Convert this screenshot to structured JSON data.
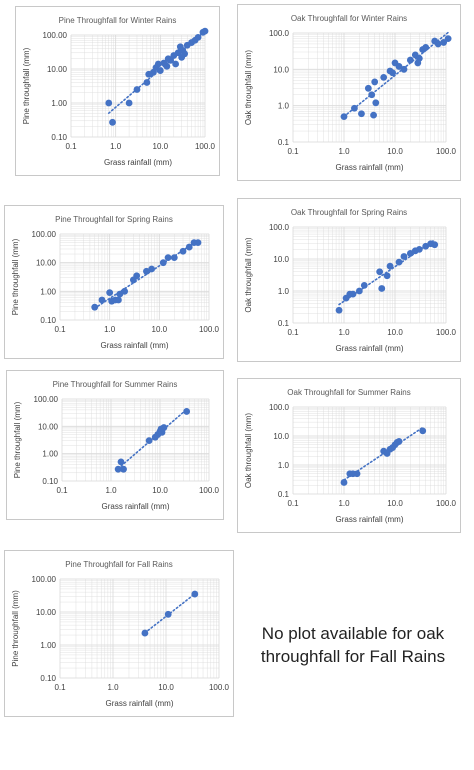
{
  "note": "No plot available for oak throughfall for Fall Rains",
  "chart_data": [
    {
      "type": "scatter",
      "title": "Pine Throughfall for Winter Rains",
      "xlabel": "Grass rainfall (mm)",
      "ylabel": "Pine throughfall (mm)",
      "x_log": true,
      "y_log": true,
      "xlim": [
        0.1,
        100
      ],
      "ylim": [
        0.1,
        100
      ],
      "x_ticks": [
        "0.1",
        "1.0",
        "10.0",
        "100.0"
      ],
      "y_ticks": [
        "0.10",
        "1.00",
        "10.00",
        "100.00"
      ],
      "trendline": "dotted",
      "points": [
        [
          0.7,
          1.0
        ],
        [
          0.85,
          0.27
        ],
        [
          2.0,
          1.0
        ],
        [
          3.0,
          2.5
        ],
        [
          5,
          4
        ],
        [
          5.5,
          7
        ],
        [
          7,
          8
        ],
        [
          8,
          11
        ],
        [
          9,
          14
        ],
        [
          10,
          9
        ],
        [
          12,
          15
        ],
        [
          14,
          12
        ],
        [
          15,
          20
        ],
        [
          17,
          18
        ],
        [
          20,
          25
        ],
        [
          22,
          14
        ],
        [
          25,
          30
        ],
        [
          28,
          45
        ],
        [
          30,
          22
        ],
        [
          32,
          35
        ],
        [
          35,
          28
        ],
        [
          40,
          50
        ],
        [
          50,
          60
        ],
        [
          60,
          70
        ],
        [
          70,
          85
        ],
        [
          90,
          120
        ],
        [
          100,
          130
        ]
      ]
    },
    {
      "type": "scatter",
      "title": "Oak Throughfall for Winter Rains",
      "xlabel": "Grass rainfall (mm)",
      "ylabel": "Oak throughfall (mm)",
      "x_log": true,
      "y_log": true,
      "xlim": [
        0.1,
        100
      ],
      "ylim": [
        0.1,
        100
      ],
      "x_ticks": [
        "0.1",
        "1.0",
        "10.0",
        "100.0"
      ],
      "y_ticks": [
        "0.1",
        "1.0",
        "10.0",
        "100.0"
      ],
      "trendline": "dotted",
      "points": [
        [
          1.0,
          0.5
        ],
        [
          1.6,
          0.85
        ],
        [
          2.2,
          0.6
        ],
        [
          3,
          3
        ],
        [
          3.5,
          2
        ],
        [
          3.8,
          0.55
        ],
        [
          4,
          4.5
        ],
        [
          4.2,
          1.2
        ],
        [
          6,
          6
        ],
        [
          8,
          9
        ],
        [
          9,
          8
        ],
        [
          10,
          15
        ],
        [
          12,
          12
        ],
        [
          15,
          10
        ],
        [
          20,
          18
        ],
        [
          25,
          25
        ],
        [
          28,
          15
        ],
        [
          30,
          20
        ],
        [
          35,
          35
        ],
        [
          40,
          40
        ],
        [
          60,
          60
        ],
        [
          70,
          50
        ],
        [
          90,
          55
        ],
        [
          110,
          70
        ]
      ]
    },
    {
      "type": "scatter",
      "title": "Pine Throughfall for Spring Rains",
      "xlabel": "Grass rainfall (mm)",
      "ylabel": "Pine throughfall (mm)",
      "x_log": true,
      "y_log": true,
      "xlim": [
        0.1,
        100
      ],
      "ylim": [
        0.1,
        100
      ],
      "x_ticks": [
        "0.1",
        "1.0",
        "10.0",
        "100.0"
      ],
      "y_ticks": [
        "0.10",
        "1.00",
        "10.00",
        "100.00"
      ],
      "trendline": "dotted",
      "points": [
        [
          0.5,
          0.28
        ],
        [
          0.7,
          0.5
        ],
        [
          1.0,
          0.9
        ],
        [
          1.1,
          0.45
        ],
        [
          1.3,
          0.5
        ],
        [
          1.5,
          0.5
        ],
        [
          1.6,
          0.8
        ],
        [
          2.0,
          1.0
        ],
        [
          3.0,
          2.5
        ],
        [
          3.5,
          3.5
        ],
        [
          5.5,
          5
        ],
        [
          7,
          6
        ],
        [
          12,
          10
        ],
        [
          15,
          15
        ],
        [
          20,
          15
        ],
        [
          30,
          25
        ],
        [
          40,
          35
        ],
        [
          50,
          50
        ],
        [
          60,
          50
        ]
      ]
    },
    {
      "type": "scatter",
      "title": "Oak Throughfall for Spring Rains",
      "xlabel": "Grass rainfall (mm)",
      "ylabel": "Oak throughfall (mm)",
      "x_log": true,
      "y_log": true,
      "xlim": [
        0.1,
        100
      ],
      "ylim": [
        0.1,
        100
      ],
      "x_ticks": [
        "0.1",
        "1.0",
        "10.0",
        "100.0"
      ],
      "y_ticks": [
        "0.1",
        "1.0",
        "10.0",
        "100.0"
      ],
      "trendline": "dotted",
      "points": [
        [
          0.8,
          0.25
        ],
        [
          1.1,
          0.6
        ],
        [
          1.3,
          0.8
        ],
        [
          1.5,
          0.8
        ],
        [
          2,
          1
        ],
        [
          2.5,
          1.5
        ],
        [
          5,
          4
        ],
        [
          5.5,
          1.2
        ],
        [
          7,
          3
        ],
        [
          8,
          6
        ],
        [
          12,
          8
        ],
        [
          15,
          12
        ],
        [
          20,
          15
        ],
        [
          25,
          18
        ],
        [
          30,
          20
        ],
        [
          40,
          25
        ],
        [
          50,
          30
        ],
        [
          60,
          28
        ]
      ]
    },
    {
      "type": "scatter",
      "title": "Pine Throughfall for Summer Rains",
      "xlabel": "Grass rainfall (mm)",
      "ylabel": "Pine throughfall (mm)",
      "x_log": true,
      "y_log": true,
      "xlim": [
        0.1,
        100
      ],
      "ylim": [
        0.1,
        100
      ],
      "x_ticks": [
        "0.1",
        "1.0",
        "10.0",
        "100.0"
      ],
      "y_ticks": [
        "0.10",
        "1.00",
        "10.00",
        "100.00"
      ],
      "trendline": "dotted",
      "points": [
        [
          1.4,
          0.27
        ],
        [
          1.6,
          0.5
        ],
        [
          1.8,
          0.27
        ],
        [
          6,
          3
        ],
        [
          8,
          4
        ],
        [
          9,
          5
        ],
        [
          10,
          6.5
        ],
        [
          10.5,
          8
        ],
        [
          11,
          6
        ],
        [
          12,
          9
        ],
        [
          35,
          35
        ]
      ]
    },
    {
      "type": "scatter",
      "title": "Oak Throughfall for Summer Rains",
      "xlabel": "Grass rainfall (mm)",
      "ylabel": "Oak throughfall (mm)",
      "x_log": true,
      "y_log": true,
      "xlim": [
        0.1,
        100
      ],
      "ylim": [
        0.1,
        100
      ],
      "x_ticks": [
        "0.1",
        "1.0",
        "10.0",
        "100.0"
      ],
      "y_ticks": [
        "0.1",
        "1.0",
        "10.0",
        "100.0"
      ],
      "trendline": "dotted",
      "points": [
        [
          1.0,
          0.25
        ],
        [
          1.3,
          0.5
        ],
        [
          1.5,
          0.5
        ],
        [
          1.8,
          0.5
        ],
        [
          6,
          3
        ],
        [
          7,
          2.5
        ],
        [
          8,
          3.5
        ],
        [
          9,
          4
        ],
        [
          10,
          5
        ],
        [
          11,
          6
        ],
        [
          12,
          6.5
        ],
        [
          35,
          15
        ]
      ]
    },
    {
      "type": "scatter",
      "title": "Pine Throughfall for Fall Rains",
      "xlabel": "Grass rainfall (mm)",
      "ylabel": "Pine throughfall (mm)",
      "x_log": true,
      "y_log": true,
      "xlim": [
        0.1,
        100
      ],
      "ylim": [
        0.1,
        100
      ],
      "x_ticks": [
        "0.1",
        "1.0",
        "10.0",
        "100.0"
      ],
      "y_ticks": [
        "0.10",
        "1.00",
        "10.00",
        "100.00"
      ],
      "trendline": "dotted",
      "points": [
        [
          4,
          2.3
        ],
        [
          11,
          8.5
        ],
        [
          35,
          35
        ]
      ]
    }
  ],
  "style": {
    "marker_color": "#4472c4",
    "grid_color": "#d9d9d9",
    "text_color": "#595959"
  }
}
